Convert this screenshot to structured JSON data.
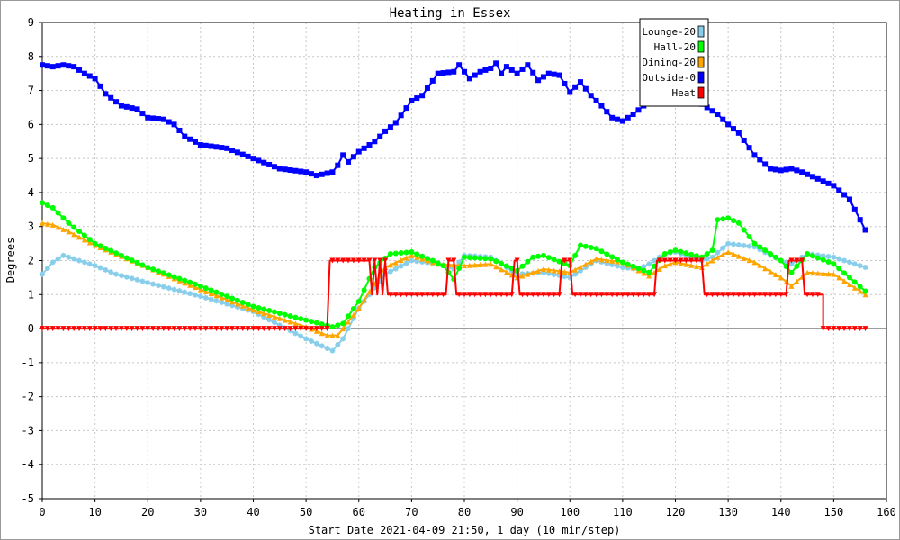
{
  "chart_data": {
    "type": "line",
    "title": "Heating in Essex",
    "xlabel": "Start Date 2021-04-09 21:50, 1 day (10 min/step)",
    "ylabel": "Degrees",
    "xlim": [
      0,
      160
    ],
    "ylim": [
      -5,
      9
    ],
    "xticks": [
      "0",
      "10",
      "20",
      "30",
      "40",
      "50",
      "60",
      "70",
      "80",
      "90",
      "100",
      "110",
      "120",
      "130",
      "140",
      "150",
      "160"
    ],
    "yticks": [
      "-5",
      "-4",
      "-3",
      "-2",
      "-1",
      "0",
      "1",
      "2",
      "3",
      "4",
      "5",
      "6",
      "7",
      "8",
      "9"
    ],
    "grid": true,
    "legend_position": "top-right",
    "series": [
      {
        "name": "Lounge-20",
        "color": "#87ceeb",
        "marker": "star",
        "x": [
          0,
          2,
          4,
          6,
          10,
          14,
          20,
          30,
          40,
          50,
          55,
          57,
          60,
          65,
          70,
          75,
          78,
          80,
          85,
          90,
          95,
          100,
          105,
          110,
          113,
          115,
          118,
          120,
          125,
          127,
          130,
          135,
          140,
          142,
          145,
          150,
          156
        ],
        "y": [
          1.6,
          1.95,
          2.15,
          2.05,
          1.85,
          1.6,
          1.35,
          0.95,
          0.5,
          -0.3,
          -0.65,
          -0.3,
          0.6,
          1.6,
          2.0,
          1.9,
          1.75,
          2.15,
          2.1,
          1.6,
          1.65,
          1.5,
          2.0,
          1.8,
          1.75,
          1.9,
          2.2,
          2.25,
          2.0,
          2.1,
          2.5,
          2.4,
          2.0,
          1.9,
          2.2,
          2.1,
          1.8
        ]
      },
      {
        "name": "Hall-20",
        "color": "#00ff00",
        "marker": "circle",
        "x": [
          0,
          2,
          5,
          10,
          20,
          30,
          40,
          50,
          55,
          57,
          60,
          63,
          66,
          70,
          74,
          76,
          78,
          80,
          85,
          90,
          93,
          95,
          100,
          102,
          105,
          110,
          115,
          118,
          120,
          125,
          127,
          128,
          130,
          132,
          135,
          140,
          142,
          145,
          150,
          156
        ],
        "y": [
          3.7,
          3.55,
          3.1,
          2.5,
          1.8,
          1.25,
          0.65,
          0.25,
          0.05,
          0.15,
          0.8,
          1.8,
          2.2,
          2.25,
          2.0,
          1.85,
          1.45,
          2.1,
          2.05,
          1.7,
          2.1,
          2.15,
          1.85,
          2.45,
          2.35,
          1.95,
          1.65,
          2.2,
          2.3,
          2.1,
          2.3,
          3.2,
          3.25,
          3.1,
          2.5,
          2.0,
          1.65,
          2.2,
          1.9,
          1.1
        ]
      },
      {
        "name": "Dining-20",
        "color": "#ffa500",
        "marker": "triangle",
        "x": [
          0,
          2,
          5,
          10,
          20,
          30,
          40,
          50,
          54,
          56,
          60,
          65,
          70,
          75,
          80,
          85,
          90,
          95,
          100,
          105,
          110,
          115,
          118,
          120,
          125,
          128,
          130,
          135,
          140,
          142,
          145,
          150,
          156
        ],
        "y": [
          3.1,
          3.05,
          2.85,
          2.45,
          1.8,
          1.15,
          0.55,
          0.05,
          -0.2,
          -0.2,
          0.6,
          1.8,
          2.15,
          1.9,
          1.85,
          1.9,
          1.5,
          1.75,
          1.65,
          2.05,
          1.95,
          1.55,
          1.85,
          1.95,
          1.8,
          2.1,
          2.25,
          1.95,
          1.5,
          1.25,
          1.65,
          1.6,
          1.0
        ]
      },
      {
        "name": "Outside-0",
        "color": "#0000ff",
        "marker": "square",
        "x": [
          0,
          2,
          4,
          6,
          8,
          10,
          12,
          15,
          18,
          20,
          23,
          25,
          27,
          30,
          35,
          40,
          45,
          50,
          52,
          55,
          56,
          57,
          58,
          60,
          63,
          65,
          67,
          70,
          72,
          75,
          78,
          79,
          81,
          83,
          85,
          86,
          87,
          88,
          90,
          92,
          94,
          96,
          98,
          100,
          102,
          104,
          106,
          108,
          110,
          112,
          114,
          116,
          118,
          120,
          122,
          124,
          126,
          128,
          130,
          132,
          135,
          138,
          140,
          142,
          144,
          147,
          150,
          153,
          156
        ],
        "y": [
          7.75,
          7.7,
          7.75,
          7.7,
          7.5,
          7.35,
          6.9,
          6.55,
          6.45,
          6.2,
          6.15,
          6.0,
          5.65,
          5.4,
          5.3,
          5.0,
          4.7,
          4.6,
          4.5,
          4.6,
          4.8,
          5.1,
          4.9,
          5.2,
          5.5,
          5.8,
          6.05,
          6.7,
          6.85,
          7.5,
          7.55,
          7.75,
          7.35,
          7.55,
          7.65,
          7.8,
          7.5,
          7.7,
          7.5,
          7.75,
          7.3,
          7.5,
          7.45,
          6.95,
          7.25,
          6.85,
          6.55,
          6.2,
          6.1,
          6.3,
          6.55,
          6.7,
          6.85,
          6.9,
          6.8,
          6.7,
          6.5,
          6.3,
          6.0,
          5.75,
          5.1,
          4.7,
          4.65,
          4.7,
          4.6,
          4.4,
          4.2,
          3.8,
          2.9
        ]
      },
      {
        "name": "Heat",
        "color": "#ff0000",
        "marker": "inverted-triangle",
        "step": true,
        "x": [
          0,
          54,
          54.5,
          62,
          62.5,
          63,
          63.5,
          64,
          64.5,
          65,
          65.5,
          76.5,
          77,
          78,
          78.5,
          89,
          89.5,
          90,
          90.5,
          98,
          98.5,
          100,
          100.5,
          116,
          116.5,
          125,
          125.5,
          141,
          141.5,
          144,
          144.5,
          147,
          148,
          156
        ],
        "y": [
          0,
          0,
          2,
          2,
          1,
          2,
          1,
          2,
          1,
          2,
          1,
          1,
          2,
          2,
          1,
          1,
          2,
          2,
          1,
          1,
          2,
          2,
          1,
          1,
          2,
          2,
          1,
          1,
          2,
          2,
          1,
          1,
          0,
          0
        ]
      }
    ]
  }
}
